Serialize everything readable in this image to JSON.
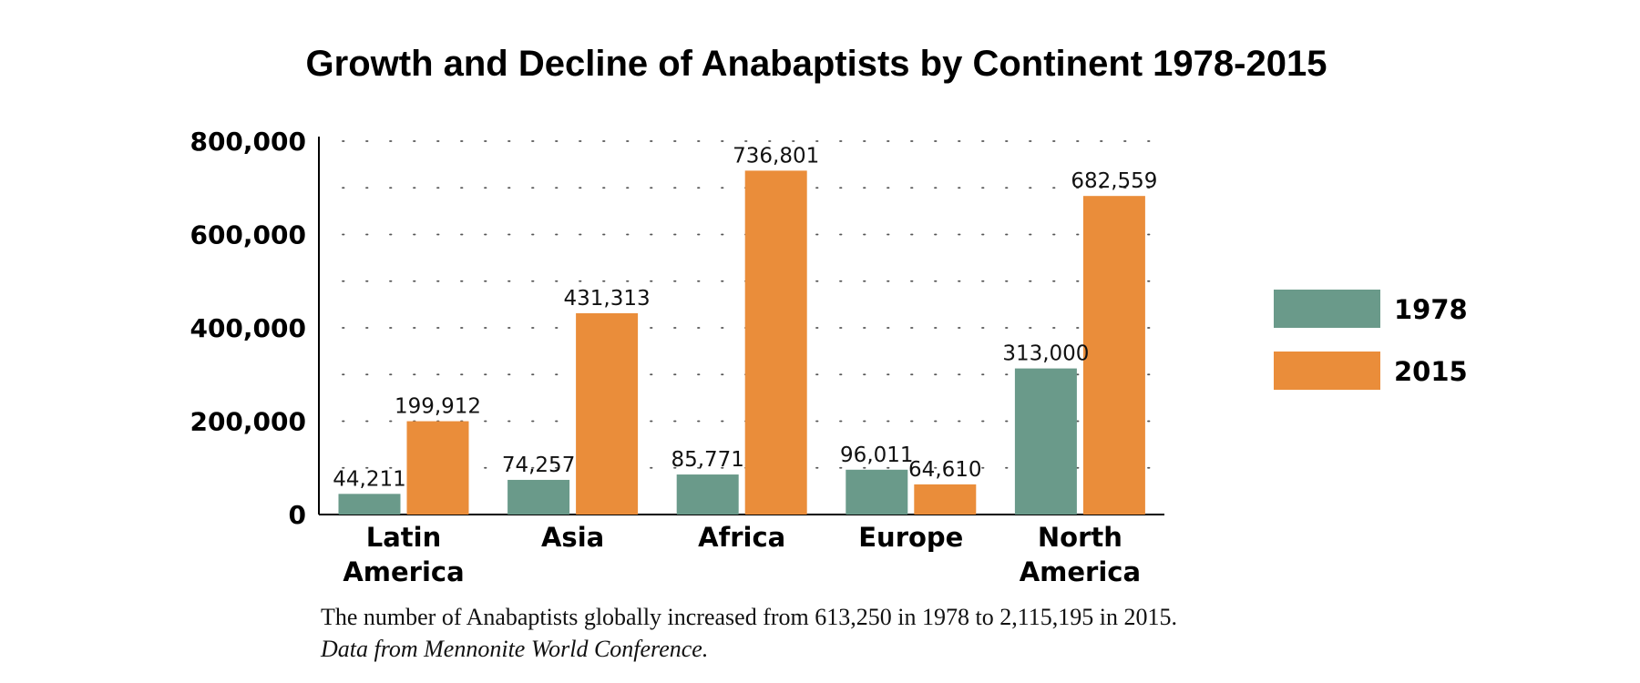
{
  "chart_data": {
    "type": "bar",
    "title": "Growth and Decline of Anabaptists by Continent 1978-2015",
    "categories": [
      [
        "Latin",
        "America"
      ],
      [
        "Asia"
      ],
      [
        "Africa"
      ],
      [
        "Europe"
      ],
      [
        "North",
        "America"
      ]
    ],
    "series": [
      {
        "name": "1978",
        "color": "#6a9a8a",
        "values": [
          44211,
          74257,
          85771,
          96011,
          313000
        ],
        "labels": [
          "44,211",
          "74,257",
          "85,771",
          "96,011",
          "313,000"
        ]
      },
      {
        "name": "2015",
        "color": "#ea8d3a",
        "values": [
          199912,
          431313,
          736801,
          64610,
          682559
        ],
        "labels": [
          "199,912",
          "431,313",
          "736,801",
          "64,610",
          "682,559"
        ]
      }
    ],
    "ylim": [
      0,
      800000
    ],
    "yticks": [
      0,
      200000,
      400000,
      600000,
      800000
    ],
    "ytick_labels": [
      "0",
      "200,000",
      "400,000",
      "600,000",
      "800,000"
    ],
    "grid": "dotted",
    "legend": "right"
  },
  "caption": {
    "text": "The number of Anabaptists globally increased from 613,250 in 1978 to 2,115,195 in 2015.",
    "source": "Data from Mennonite World Conference."
  }
}
